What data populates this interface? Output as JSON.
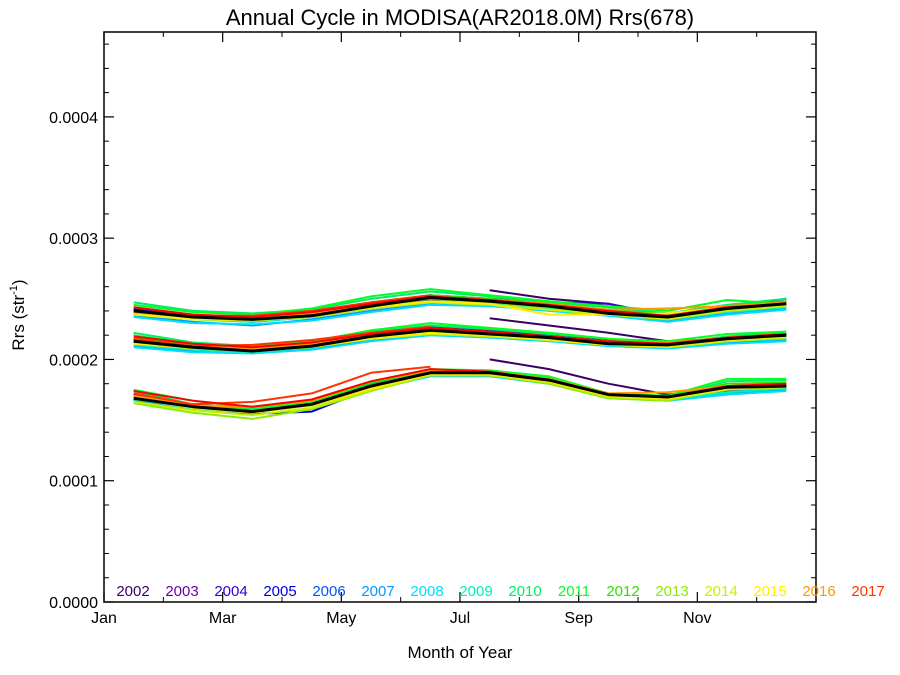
{
  "chart_data": {
    "type": "line",
    "title": "Annual Cycle in MODISA(AR2018.0M) Rrs(678)",
    "xlabel": "Month of Year",
    "ylabel_main": "Rrs (str",
    "ylabel_sup": "-1",
    "ylabel_close": ")",
    "xlim": [
      1,
      13
    ],
    "ylim": [
      0.0,
      0.00047
    ],
    "x_ticks": [
      {
        "v": 1,
        "label": "Jan"
      },
      {
        "v": 3,
        "label": "Mar"
      },
      {
        "v": 5,
        "label": "May"
      },
      {
        "v": 7,
        "label": "Jul"
      },
      {
        "v": 9,
        "label": "Sep"
      },
      {
        "v": 11,
        "label": "Nov"
      }
    ],
    "y_ticks": [
      {
        "v": 0.0,
        "label": "0.0000"
      },
      {
        "v": 0.0001,
        "label": "0.0001"
      },
      {
        "v": 0.0002,
        "label": "0.0002"
      },
      {
        "v": 0.0003,
        "label": "0.0003"
      },
      {
        "v": 0.0004,
        "label": "0.0004"
      }
    ],
    "grid": false,
    "legend_position": "bottom (inside plot, single row)",
    "months": [
      1.5,
      2.5,
      3.5,
      4.5,
      5.5,
      6.5,
      7.5,
      8.5,
      9.5,
      10.5,
      11.5,
      12.5
    ],
    "band_names": [
      "upper",
      "median",
      "lower"
    ],
    "series": [
      {
        "name": "2002",
        "color": "#3a0066",
        "bands": [
          [
            null,
            null,
            null,
            null,
            null,
            null,
            0.000257,
            0.00025,
            0.000246,
            0.000236,
            0.000241,
            0.000248
          ],
          [
            null,
            null,
            null,
            null,
            null,
            null,
            0.000234,
            0.000228,
            0.000222,
            0.000215,
            0.000217,
            0.00022
          ],
          [
            null,
            null,
            null,
            null,
            null,
            null,
            0.0002,
            0.000192,
            0.00018,
            0.000171,
            0.000175,
            0.000176
          ]
        ]
      },
      {
        "name": "2003",
        "color": "#6a00a8",
        "bands": [
          [
            0.000241,
            0.000236,
            0.000234,
            0.000237,
            0.000244,
            0.00025,
            0.000249,
            0.000244,
            0.000241,
            0.000235,
            0.000242,
            0.000247
          ],
          [
            0.000216,
            0.000211,
            0.000208,
            0.000212,
            0.000219,
            0.000225,
            0.000222,
            0.000219,
            0.000216,
            0.000213,
            0.000218,
            0.000221
          ],
          [
            0.00017,
            0.000161,
            0.000157,
            0.000163,
            0.000178,
            0.000189,
            0.00019,
            0.000184,
            0.000172,
            0.000168,
            0.000177,
            0.000179
          ]
        ]
      },
      {
        "name": "2004",
        "color": "#3300cc",
        "bands": [
          [
            0.000242,
            0.000236,
            0.000233,
            0.000238,
            0.000246,
            0.000253,
            0.00025,
            0.000247,
            0.000246,
            0.000236,
            0.000243,
            0.00025
          ],
          [
            0.000217,
            0.000212,
            0.000209,
            0.000213,
            0.00022,
            0.000227,
            0.000224,
            0.00022,
            0.000215,
            0.000212,
            0.000218,
            0.00022
          ],
          [
            0.000171,
            0.000163,
            0.000158,
            0.000162,
            0.00018,
            0.00019,
            0.000189,
            0.000183,
            0.000171,
            0.000169,
            0.000176,
            0.000178
          ]
        ]
      },
      {
        "name": "2005",
        "color": "#0000dd",
        "bands": [
          [
            0.00024,
            0.000235,
            0.000232,
            0.000236,
            0.000243,
            0.000249,
            0.000248,
            0.000243,
            0.000239,
            0.000235,
            0.000241,
            0.000246
          ],
          [
            0.000215,
            0.00021,
            0.000206,
            0.000211,
            0.000218,
            0.000223,
            0.000221,
            0.000217,
            0.000213,
            0.000212,
            0.000216,
            0.000219
          ],
          [
            0.000168,
            0.00016,
            0.000155,
            0.000157,
            0.000176,
            0.000188,
            0.000188,
            0.000182,
            0.00017,
            0.000168,
            0.000174,
            0.000177
          ]
        ]
      },
      {
        "name": "2006",
        "color": "#0055ff",
        "bands": [
          [
            0.000239,
            0.000234,
            0.000231,
            0.000235,
            0.000242,
            0.000248,
            0.000247,
            0.000243,
            0.000238,
            0.000234,
            0.00024,
            0.000245
          ],
          [
            0.000214,
            0.000209,
            0.000207,
            0.000211,
            0.000217,
            0.000222,
            0.00022,
            0.000217,
            0.000213,
            0.000211,
            0.000216,
            0.000218
          ],
          [
            0.000167,
            0.000161,
            0.000157,
            0.000164,
            0.000177,
            0.000188,
            0.000187,
            0.000181,
            0.00017,
            0.000168,
            0.000173,
            0.000176
          ]
        ]
      },
      {
        "name": "2007",
        "color": "#0099ff",
        "bands": [
          [
            0.000236,
            0.000231,
            0.000228,
            0.000233,
            0.00024,
            0.000246,
            0.000245,
            0.000241,
            0.000237,
            0.000232,
            0.000238,
            0.000242
          ],
          [
            0.000211,
            0.000207,
            0.000205,
            0.000209,
            0.000216,
            0.000221,
            0.000219,
            0.000216,
            0.000212,
            0.00021,
            0.000214,
            0.000216
          ],
          [
            0.000166,
            0.00016,
            0.000156,
            0.000163,
            0.000176,
            0.000187,
            0.000187,
            0.000181,
            0.000169,
            0.000167,
            0.000172,
            0.000175
          ]
        ]
      },
      {
        "name": "2008",
        "color": "#00ddff",
        "bands": [
          [
            0.000235,
            0.00023,
            0.000229,
            0.000232,
            0.000239,
            0.000245,
            0.000244,
            0.00024,
            0.000236,
            0.000231,
            0.000237,
            0.000241
          ],
          [
            0.00021,
            0.000206,
            0.000205,
            0.000208,
            0.000215,
            0.00022,
            0.000218,
            0.000215,
            0.000211,
            0.000209,
            0.000213,
            0.000215
          ],
          [
            0.000165,
            0.000159,
            0.000156,
            0.000162,
            0.000175,
            0.000186,
            0.000186,
            0.00018,
            0.000168,
            0.000166,
            0.000171,
            0.000174
          ]
        ]
      },
      {
        "name": "2009",
        "color": "#00f0c0",
        "bands": [
          [
            0.000238,
            0.000233,
            0.000231,
            0.000235,
            0.000242,
            0.000247,
            0.000246,
            0.000242,
            0.000238,
            0.000233,
            0.000239,
            0.000243
          ],
          [
            0.000212,
            0.000208,
            0.000206,
            0.00021,
            0.000217,
            0.000222,
            0.00022,
            0.000217,
            0.000212,
            0.00021,
            0.000215,
            0.000217
          ],
          [
            0.000167,
            0.000161,
            0.000157,
            0.000163,
            0.000177,
            0.000188,
            0.000188,
            0.000182,
            0.000169,
            0.000167,
            0.000173,
            0.000176
          ]
        ]
      },
      {
        "name": "2010",
        "color": "#00ee66",
        "bands": [
          [
            0.000247,
            0.00024,
            0.000238,
            0.000241,
            0.00025,
            0.000256,
            0.000252,
            0.000247,
            0.000243,
            0.000238,
            0.000245,
            0.00025
          ],
          [
            0.000222,
            0.000214,
            0.000211,
            0.000214,
            0.000223,
            0.000228,
            0.000225,
            0.000221,
            0.000217,
            0.000213,
            0.000219,
            0.000223
          ],
          [
            0.000174,
            0.000163,
            0.000159,
            0.000164,
            0.000179,
            0.000191,
            0.000191,
            0.000185,
            0.000172,
            0.000169,
            0.000182,
            0.000183
          ]
        ]
      },
      {
        "name": "2011",
        "color": "#00ff22",
        "bands": [
          [
            0.000245,
            0.000239,
            0.000237,
            0.000242,
            0.000252,
            0.000258,
            0.000253,
            0.000248,
            0.000244,
            0.00024,
            0.000249,
            0.000246
          ],
          [
            0.00022,
            0.000213,
            0.00021,
            0.000215,
            0.000224,
            0.00023,
            0.000226,
            0.000222,
            0.000217,
            0.000215,
            0.000221,
            0.000223
          ],
          [
            0.000175,
            0.000166,
            0.00016,
            0.000165,
            0.000181,
            0.000192,
            0.000191,
            0.000186,
            0.000172,
            0.00017,
            0.000184,
            0.000184
          ]
        ]
      },
      {
        "name": "2012",
        "color": "#33dd00",
        "bands": [
          [
            0.000243,
            0.000237,
            0.000235,
            0.000239,
            0.000247,
            0.000253,
            0.00025,
            0.000246,
            0.000241,
            0.000237,
            0.000244,
            0.000248
          ],
          [
            0.000218,
            0.000212,
            0.000209,
            0.000213,
            0.000221,
            0.000226,
            0.000223,
            0.000219,
            0.000215,
            0.000213,
            0.000218,
            0.000221
          ],
          [
            0.000172,
            0.000163,
            0.000158,
            0.000163,
            0.000179,
            0.00019,
            0.000189,
            0.000183,
            0.000171,
            0.000169,
            0.00018,
            0.000181
          ]
        ]
      },
      {
        "name": "2013",
        "color": "#88ee00",
        "bands": [
          [
            0.00024,
            0.000235,
            0.000233,
            0.000236,
            0.000244,
            0.00025,
            0.000247,
            0.000243,
            0.000239,
            0.000234,
            0.000241,
            0.000245
          ],
          [
            0.000215,
            0.00021,
            0.000207,
            0.000211,
            0.000218,
            0.000223,
            0.000221,
            0.000217,
            0.000213,
            0.000211,
            0.000216,
            0.000219
          ],
          [
            0.000164,
            0.000156,
            0.000151,
            0.000159,
            0.000174,
            0.000187,
            0.000187,
            0.00018,
            0.000168,
            0.000166,
            0.000176,
            0.000178
          ]
        ]
      },
      {
        "name": "2014",
        "color": "#ccee00",
        "bands": [
          [
            0.000238,
            0.000233,
            0.000232,
            0.000235,
            0.000242,
            0.000247,
            0.000245,
            0.000241,
            0.000237,
            0.000233,
            0.00024,
            0.000244
          ],
          [
            0.000213,
            0.000209,
            0.000207,
            0.00021,
            0.000217,
            0.000221,
            0.000219,
            0.000216,
            0.000212,
            0.00021,
            0.000215,
            0.000218
          ],
          [
            0.000165,
            0.000158,
            0.000154,
            0.00016,
            0.000175,
            0.000187,
            0.000187,
            0.000181,
            0.000169,
            0.000167,
            0.000175,
            0.000177
          ]
        ]
      },
      {
        "name": "2015",
        "color": "#ffee00",
        "bands": [
          [
            0.000237,
            0.000233,
            0.000233,
            0.000236,
            0.000243,
            0.000248,
            0.000246,
            0.000237,
            0.000237,
            0.000238,
            0.000243,
            0.000246
          ],
          [
            0.000213,
            0.00021,
            0.000208,
            0.000211,
            0.000217,
            0.000222,
            0.00022,
            0.000216,
            0.000212,
            0.000211,
            0.000216,
            0.000219
          ],
          [
            0.000168,
            0.00016,
            0.000156,
            0.000162,
            0.000176,
            0.000188,
            0.000188,
            0.000182,
            0.00017,
            0.000168,
            0.000176,
            0.000179
          ]
        ]
      },
      {
        "name": "2016",
        "color": "#ff9900",
        "bands": [
          [
            0.000239,
            0.000235,
            0.000234,
            0.000238,
            0.000245,
            0.000251,
            0.000249,
            0.000246,
            0.000241,
            0.000242,
            0.000244,
            0.000247
          ],
          [
            0.000215,
            0.000211,
            0.000209,
            0.000213,
            0.000219,
            0.000224,
            0.000222,
            0.000219,
            0.000215,
            0.000214,
            0.000218,
            0.000221
          ],
          [
            0.00017,
            0.000162,
            0.000161,
            0.000166,
            0.000182,
            0.000191,
            0.00019,
            0.000184,
            0.000172,
            0.000173,
            0.000178,
            0.00018
          ]
        ]
      },
      {
        "name": "2017",
        "color": "#ff3300",
        "bands": [
          [
            0.00024,
            0.000236,
            0.000236,
            0.00024,
            0.000247,
            0.000253,
            null,
            null,
            null,
            null,
            null,
            null
          ],
          [
            0.000217,
            0.000211,
            0.000212,
            0.000216,
            0.000222,
            0.000227,
            null,
            null,
            null,
            null,
            null,
            null
          ],
          [
            0.000172,
            0.000163,
            0.000165,
            0.000172,
            0.000189,
            0.000194,
            null,
            null,
            null,
            null,
            null,
            null
          ]
        ]
      },
      {
        "name": "",
        "color": "#ff0000",
        "bands": [
          [
            0.000243,
            0.000237,
            0.000235,
            0.000239,
            0.000246,
            0.000252,
            0.000249,
            0.000245,
            0.00024,
            0.000236,
            0.000243,
            0.000246
          ],
          [
            0.000219,
            0.000213,
            0.00021,
            0.000214,
            0.000221,
            0.000226,
            0.000223,
            0.000219,
            0.000215,
            0.000213,
            0.000218,
            0.000221
          ],
          [
            0.000174,
            0.000166,
            0.000161,
            0.000167,
            0.000182,
            0.000192,
            0.00019,
            0.000183,
            0.000171,
            0.000169,
            0.000178,
            0.00018
          ]
        ]
      },
      {
        "name": "",
        "color": "#000000",
        "bands": [
          [
            0.00024,
            0.000235,
            0.000233,
            0.000236,
            0.000244,
            0.000251,
            0.000248,
            0.000244,
            0.000238,
            0.000235,
            0.000242,
            0.000246
          ],
          [
            0.000215,
            0.00021,
            0.000207,
            0.000211,
            0.000219,
            0.000224,
            0.000221,
            0.000218,
            0.000213,
            0.000212,
            0.000217,
            0.00022
          ],
          [
            0.000168,
            0.000161,
            0.000157,
            0.000163,
            0.000178,
            0.000189,
            0.000189,
            0.000183,
            0.000171,
            0.000169,
            0.000177,
            0.000178
          ]
        ]
      }
    ]
  }
}
